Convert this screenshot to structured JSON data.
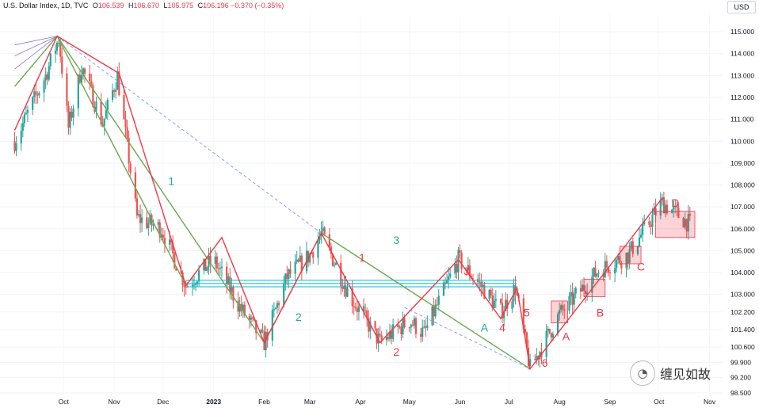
{
  "header": {
    "symbol": "U.S. Dollar Index, 1D, TVC",
    "o_label": "O",
    "o": "106.539",
    "h_label": "H",
    "h": "106.670",
    "l_label": "L",
    "l": "105.975",
    "c_label": "C",
    "c": "106.196",
    "change": "−0.370 (−0.35%)"
  },
  "currency_button": "USD",
  "watermark": {
    "icon": "wechat-icon",
    "text": "缠见如故"
  },
  "colors": {
    "up": "#26a69a",
    "down": "#ef5350",
    "red_line": "#f23645",
    "green_line": "#6aa84f",
    "cyan_zone": "#00bcd4",
    "dashed": "#8c9eff"
  },
  "chart_data": {
    "type": "candlestick",
    "ylim": [
      98.5,
      115.8
    ],
    "yticks": [
      "115.000",
      "114.000",
      "113.000",
      "112.000",
      "111.000",
      "110.000",
      "109.000",
      "108.000",
      "107.000",
      "106.000",
      "105.000",
      "104.000",
      "103.000",
      "102.200",
      "101.400",
      "100.600",
      "99.900",
      "99.200",
      "98.500"
    ],
    "xticks": [
      "Oct",
      "Nov",
      "Dec",
      "2023",
      "Feb",
      "Mar",
      "Apr",
      "May",
      "Jun",
      "Jul",
      "Aug",
      "Sep",
      "Oct",
      "Nov"
    ],
    "price_path": [
      [
        "2022-09-01",
        110.0
      ],
      [
        "2022-09-20",
        113.0
      ],
      [
        "2022-09-28",
        114.7
      ],
      [
        "2022-10-04",
        110.6
      ],
      [
        "2022-10-12",
        113.4
      ],
      [
        "2022-10-25",
        110.8
      ],
      [
        "2022-11-03",
        113.0
      ],
      [
        "2022-11-15",
        106.5
      ],
      [
        "2022-11-30",
        106.0
      ],
      [
        "2022-12-15",
        103.4
      ],
      [
        "2023-01-01",
        104.6
      ],
      [
        "2023-01-18",
        102.3
      ],
      [
        "2023-02-01",
        100.8
      ],
      [
        "2023-02-15",
        103.8
      ],
      [
        "2023-03-01",
        104.8
      ],
      [
        "2023-03-08",
        105.8
      ],
      [
        "2023-03-25",
        103.0
      ],
      [
        "2023-04-13",
        100.8
      ],
      [
        "2023-05-01",
        101.8
      ],
      [
        "2023-05-10",
        101.2
      ],
      [
        "2023-05-31",
        104.6
      ],
      [
        "2023-06-15",
        103.3
      ],
      [
        "2023-06-26",
        102.2
      ],
      [
        "2023-07-05",
        103.3
      ],
      [
        "2023-07-14",
        99.6
      ],
      [
        "2023-08-01",
        102.1
      ],
      [
        "2023-08-25",
        104.1
      ],
      [
        "2023-09-12",
        104.8
      ],
      [
        "2023-10-03",
        107.2
      ],
      [
        "2023-10-20",
        106.2
      ]
    ],
    "red_lines": [
      [
        [
          "2022-09-01",
          110.5
        ],
        [
          "2022-09-27",
          114.8
        ],
        [
          "2022-11-04",
          113.1
        ],
        [
          "2022-12-15",
          103.4
        ],
        [
          "2023-01-06",
          105.6
        ],
        [
          "2023-02-01",
          100.8
        ],
        [
          "2023-03-08",
          105.8
        ],
        [
          "2023-04-13",
          100.8
        ],
        [
          "2023-05-31",
          104.6
        ],
        [
          "2023-06-26",
          101.9
        ],
        [
          "2023-07-06",
          103.3
        ],
        [
          "2023-07-14",
          99.6
        ],
        [
          "2023-10-03",
          107.4
        ]
      ]
    ],
    "green_lines": [
      [
        [
          "2022-09-01",
          112.5
        ],
        [
          "2022-09-27",
          114.8
        ],
        [
          "2022-12-15",
          103.4
        ]
      ],
      [
        [
          "2022-09-27",
          114.8
        ],
        [
          "2023-02-01",
          100.8
        ],
        [
          "2023-03-08",
          105.8
        ],
        [
          "2023-07-14",
          99.6
        ]
      ]
    ],
    "dashed_lines": [
      [
        [
          "2022-09-27",
          114.8
        ],
        [
          "2023-03-08",
          105.8
        ]
      ],
      [
        [
          "2023-04-28",
          102.4
        ],
        [
          "2023-07-14",
          99.6
        ]
      ]
    ],
    "fan_lines": [
      [
        [
          "2022-09-01",
          113.3
        ],
        [
          "2022-09-27",
          114.8
        ]
      ],
      [
        [
          "2022-09-01",
          113.9
        ],
        [
          "2022-09-27",
          114.8
        ]
      ],
      [
        [
          "2022-09-01",
          114.4
        ],
        [
          "2022-09-27",
          114.8
        ]
      ]
    ],
    "hlines": [
      {
        "from": "2022-12-15",
        "to": "2023-07-06",
        "y": 103.35
      },
      {
        "from": "2022-12-15",
        "to": "2023-07-06",
        "y": 103.5
      },
      {
        "from": "2022-12-15",
        "to": "2023-07-06",
        "y": 103.65
      }
    ],
    "boxes": [
      {
        "from": "2023-07-27",
        "to": "2023-08-06",
        "y1": 101.7,
        "y2": 102.7
      },
      {
        "from": "2023-08-16",
        "to": "2023-08-29",
        "y1": 102.9,
        "y2": 103.7
      },
      {
        "from": "2023-09-07",
        "to": "2023-09-20",
        "y1": 104.4,
        "y2": 105.2
      },
      {
        "from": "2023-09-29",
        "to": "2023-10-23",
        "y1": 105.6,
        "y2": 106.8
      }
    ],
    "labels": [
      {
        "text": "1",
        "date": "2022-12-06",
        "y": 108.0,
        "color": "#26a69a"
      },
      {
        "text": "2",
        "date": "2023-02-22",
        "y": 101.8,
        "color": "#26a69a"
      },
      {
        "text": "3",
        "date": "2023-04-23",
        "y": 105.3,
        "color": "#26a69a"
      },
      {
        "text": "1",
        "date": "2023-04-02",
        "y": 104.5,
        "color": "#f23645"
      },
      {
        "text": "2",
        "date": "2023-04-23",
        "y": 100.2,
        "color": "#f23645"
      },
      {
        "text": "3",
        "date": "2023-06-05",
        "y": 103.9,
        "color": "#f23645"
      },
      {
        "text": "4",
        "date": "2023-06-27",
        "y": 101.3,
        "color": "#f23645"
      },
      {
        "text": "5",
        "date": "2023-07-12",
        "y": 102.0,
        "color": "#f23645"
      },
      {
        "text": "6",
        "date": "2023-07-23",
        "y": 99.7,
        "color": "#f23645"
      },
      {
        "text": "A",
        "date": "2023-06-16",
        "y": 101.3,
        "color": "#26a69a"
      },
      {
        "text": "A",
        "date": "2023-08-05",
        "y": 100.9,
        "color": "#f23645"
      },
      {
        "text": "B",
        "date": "2023-08-26",
        "y": 102.0,
        "color": "#f23645"
      },
      {
        "text": "C",
        "date": "2023-09-20",
        "y": 104.1,
        "color": "#f23645"
      },
      {
        "text": "D",
        "date": "2023-10-11",
        "y": 107.0,
        "color": "#f23645"
      }
    ]
  }
}
